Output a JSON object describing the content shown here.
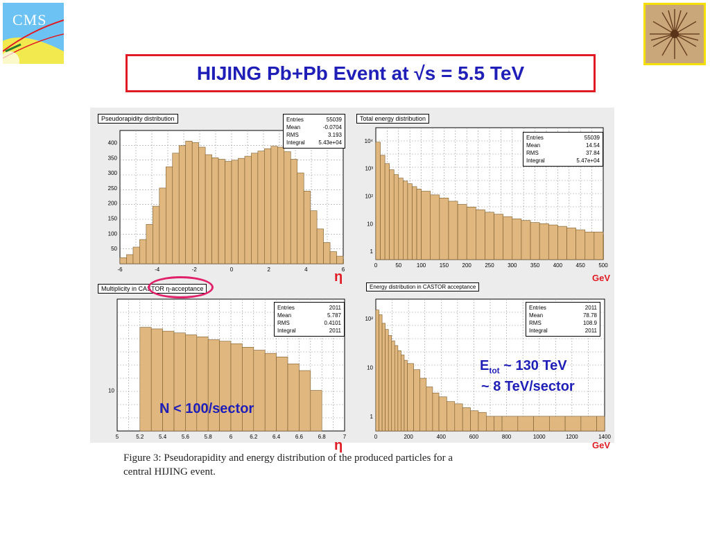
{
  "logos": {
    "cms_text": "CMS",
    "left_icon": "cms-logo-icon",
    "right_icon": "vergina-sun-icon"
  },
  "slide_title": "HIJING  Pb+Pb  Event at √s = 5.5 TeV",
  "axis_unit_labels": {
    "eta_top": "η",
    "gev_top": "GeV",
    "eta_bottom": "η",
    "gev_bottom": "GeV"
  },
  "annotations": {
    "etot_prefix": "E",
    "etot_sub": "tot",
    "etot_rest": " ~ 130 TeV",
    "per_sector": "~ 8 TeV/sector",
    "n_sector": "N < 100/sector"
  },
  "caption": {
    "line1": "Figure 3:  Pseudorapidity and energy distribution of the produced particles for a",
    "line2": "central HIJING event."
  },
  "colors": {
    "fill": "#dfb77f",
    "stroke": "#7a5a2a",
    "title_blue": "#1f1fb8",
    "accent_red": "#e01b24"
  },
  "panels": {
    "tl": {
      "title": "Pseudorapidity distribution",
      "stats": [
        [
          "Entries",
          "55039"
        ],
        [
          "Mean",
          "-0.0704"
        ],
        [
          "RMS",
          "3.193"
        ],
        [
          "Integral",
          "5.43e+04"
        ]
      ],
      "ticks_y": [
        "400",
        "350",
        "300",
        "250",
        "200",
        "150",
        "100",
        "50"
      ],
      "ticks_x": [
        "-6",
        "-4",
        "-2",
        "0",
        "2",
        "4",
        "6"
      ]
    },
    "tr": {
      "title": "Total energy distribution",
      "stats": [
        [
          "Entries",
          "55039"
        ],
        [
          "Mean",
          "14.54"
        ],
        [
          "RMS",
          "37.84"
        ],
        [
          "Integral",
          "5.47e+04"
        ]
      ],
      "ticks_y": [
        "10⁴",
        "10³",
        "10²",
        "10",
        "1"
      ],
      "ticks_x": [
        "0",
        "50",
        "100",
        "150",
        "200",
        "250",
        "300",
        "350",
        "400",
        "450",
        "500"
      ]
    },
    "bl": {
      "title": "Multiplicity in CASTOR η-acceptance",
      "stats": [
        [
          "Entries",
          "2011"
        ],
        [
          "Mean",
          "5.787"
        ],
        [
          "RMS",
          "0.4101"
        ],
        [
          "Integral",
          "2011"
        ]
      ],
      "ticks_y": [
        "10"
      ],
      "ticks_x": [
        "5",
        "5.2",
        "5.4",
        "5.6",
        "5.8",
        "6",
        "6.2",
        "6.4",
        "6.6",
        "6.8",
        "7"
      ]
    },
    "br": {
      "title": "Energy distribution in CASTOR acceptance",
      "stats": [
        [
          "Entries",
          "2011"
        ],
        [
          "Mean",
          "78.78"
        ],
        [
          "RMS",
          "108.9"
        ],
        [
          "Integral",
          "2011"
        ]
      ],
      "ticks_y": [
        "10²",
        "10",
        "1"
      ],
      "ticks_x": [
        "0",
        "200",
        "400",
        "600",
        "800",
        "1000",
        "1200",
        "1400"
      ]
    }
  },
  "chart_data": [
    {
      "type": "bar",
      "title": "Pseudorapidity distribution",
      "xlabel": "η",
      "xlim": [
        -6.8,
        6.8
      ],
      "ylim": [
        0,
        440
      ],
      "x": [
        -6.8,
        -6.4,
        -6.0,
        -5.6,
        -5.2,
        -4.8,
        -4.4,
        -4.0,
        -3.6,
        -3.2,
        -2.8,
        -2.4,
        -2.0,
        -1.6,
        -1.2,
        -0.8,
        -0.4,
        0.0,
        0.4,
        0.8,
        1.2,
        1.6,
        2.0,
        2.4,
        2.8,
        3.2,
        3.6,
        4.0,
        4.4,
        4.8,
        5.2,
        5.6,
        6.0,
        6.4,
        6.8
      ],
      "values": [
        20,
        30,
        55,
        80,
        130,
        190,
        250,
        320,
        365,
        390,
        405,
        400,
        385,
        360,
        350,
        345,
        338,
        342,
        348,
        355,
        365,
        372,
        380,
        388,
        385,
        370,
        345,
        300,
        240,
        175,
        115,
        70,
        40,
        25,
        15
      ]
    },
    {
      "type": "bar",
      "title": "Total energy distribution",
      "xlabel": "GeV",
      "log_y": true,
      "xlim": [
        0,
        500
      ],
      "ylim": [
        0.5,
        30000
      ],
      "x": [
        0,
        10,
        20,
        30,
        40,
        50,
        60,
        70,
        80,
        90,
        100,
        120,
        140,
        160,
        180,
        200,
        220,
        240,
        260,
        280,
        300,
        320,
        340,
        360,
        380,
        400,
        420,
        440,
        460,
        480,
        500
      ],
      "values": [
        9000,
        3000,
        1500,
        900,
        600,
        450,
        350,
        280,
        220,
        180,
        150,
        110,
        85,
        65,
        50,
        40,
        32,
        26,
        22,
        18,
        15,
        13,
        11,
        10,
        9,
        8,
        7,
        6,
        5,
        5,
        4
      ]
    },
    {
      "type": "bar",
      "title": "Multiplicity in CASTOR η-acceptance",
      "xlabel": "η",
      "log_y": true,
      "xlim": [
        5,
        7
      ],
      "x": [
        5.2,
        5.3,
        5.4,
        5.5,
        5.6,
        5.7,
        5.8,
        5.9,
        6.0,
        6.1,
        6.2,
        6.3,
        6.4,
        6.5,
        6.6,
        6.7
      ],
      "values": [
        65,
        62,
        58,
        55,
        52,
        49,
        45,
        43,
        40,
        36,
        33,
        30,
        27,
        22,
        18,
        10
      ]
    },
    {
      "type": "bar",
      "title": "Energy distribution in CASTOR acceptance",
      "xlabel": "GeV",
      "log_y": true,
      "xlim": [
        0,
        1450
      ],
      "ylim": [
        0.5,
        250
      ],
      "x": [
        0,
        20,
        40,
        60,
        80,
        100,
        120,
        140,
        160,
        180,
        200,
        240,
        280,
        320,
        360,
        400,
        450,
        500,
        550,
        600,
        650,
        700,
        750,
        800,
        900,
        1000,
        1100,
        1200,
        1300,
        1400
      ],
      "values": [
        150,
        120,
        80,
        60,
        45,
        35,
        28,
        22,
        18,
        14,
        12,
        9,
        6,
        4,
        3,
        2.5,
        2,
        1.8,
        1.5,
        1.3,
        1.2,
        1,
        1,
        1,
        1,
        1,
        1,
        1,
        1,
        1
      ]
    }
  ]
}
